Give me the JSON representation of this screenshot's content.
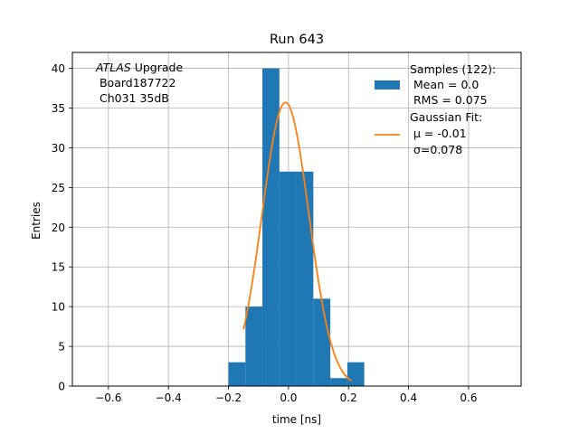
{
  "chart_data": {
    "type": "bar",
    "title": "Run 643",
    "xlabel": "time [ns]",
    "ylabel": "Entries",
    "xlim": [
      -0.72,
      0.775
    ],
    "ylim": [
      0,
      42
    ],
    "grid": true,
    "x_ticks": [
      -0.6,
      -0.4,
      -0.2,
      0.0,
      0.2,
      0.4,
      0.6
    ],
    "x_tick_labels": [
      "−0.6",
      "−0.4",
      "−0.2",
      "0.0",
      "0.2",
      "0.4",
      "0.6"
    ],
    "y_ticks": [
      0,
      5,
      10,
      15,
      20,
      25,
      30,
      35,
      40
    ],
    "y_tick_labels": [
      "0",
      "5",
      "10",
      "15",
      "20",
      "25",
      "30",
      "35",
      "40"
    ],
    "bin_edges": [
      -0.2,
      -0.1434,
      -0.0869,
      -0.0303,
      0.0262,
      0.0828,
      0.1394,
      0.1959,
      0.2525
    ],
    "counts": [
      3,
      10,
      40,
      27,
      27,
      11,
      1,
      3
    ],
    "bar_color": "#1f77b4",
    "fit_curve": {
      "name": "Gaussian Fit",
      "mu": -0.01,
      "sigma": 0.078,
      "amplitude": 35.7,
      "x_range": [
        -0.15,
        0.21
      ],
      "color": "#ff7f0e"
    },
    "annotation": {
      "line1_italic": "ATLAS",
      "line1_rest": " Upgrade",
      "line2": " Board187722",
      "line3": " Ch031 35dB"
    },
    "legend": {
      "position": "top-right",
      "entries": [
        {
          "kind": "bar",
          "color": "#1f77b4",
          "lines": [
            "Samples (122):",
            " Mean = 0.0",
            " RMS = 0.075"
          ]
        },
        {
          "kind": "line",
          "color": "#ff7f0e",
          "lines": [
            "Gaussian Fit:",
            " μ = -0.01",
            " σ=0.078"
          ]
        }
      ]
    }
  }
}
